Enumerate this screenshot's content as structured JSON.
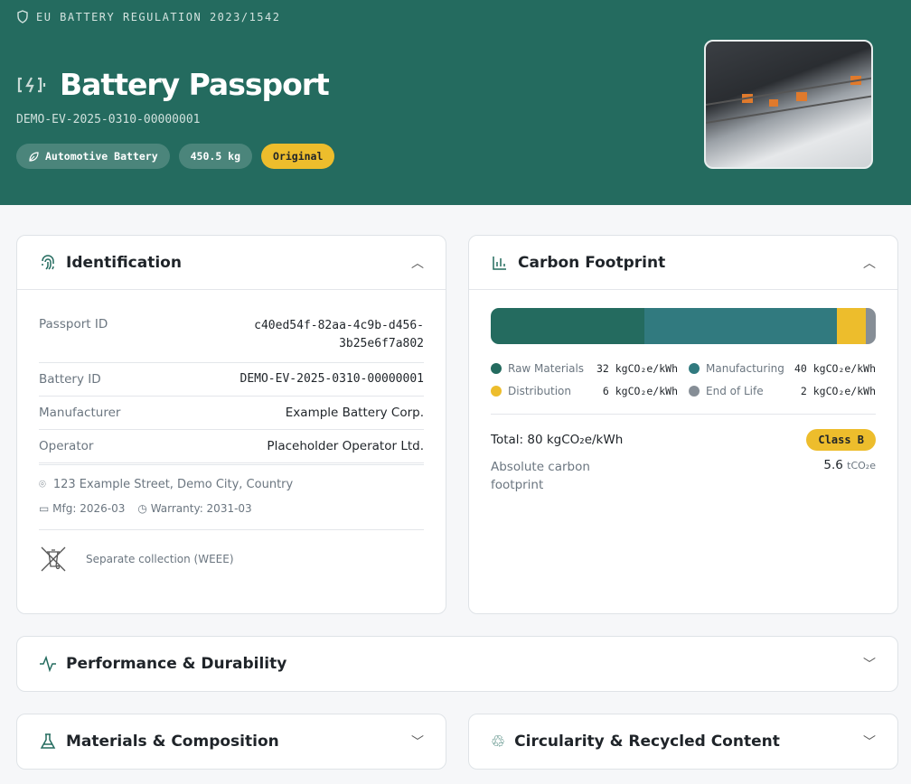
{
  "hero": {
    "regulation": "EU BATTERY REGULATION 2023/1542",
    "title": "Battery Passport",
    "battery_id": "DEMO-EV-2025-0310-00000001",
    "chips": [
      {
        "label": "Automotive Battery",
        "icon": "leaf-icon"
      },
      {
        "label": "450.5 kg"
      },
      {
        "label": "Original"
      }
    ]
  },
  "identification": {
    "title": "Identification",
    "rows": [
      {
        "label": "Passport ID",
        "value": "c40ed54f-82aa-4c9b-d456-3b25e6f7a802"
      },
      {
        "label": "Battery ID",
        "value": "DEMO-EV-2025-0310-00000001"
      },
      {
        "label": "Manufacturer",
        "value": "Example Battery Corp."
      },
      {
        "label": "Operator",
        "value": "Placeholder Operator Ltd."
      }
    ],
    "address": "123 Example Street, Demo City, Country",
    "mfg": "Mfg: 2026-03",
    "warranty": "Warranty: 2031-03",
    "collection": "Separate collection (WEEE)"
  },
  "carbon": {
    "title": "Carbon Footprint",
    "unit": "kgCO₂e/kWh",
    "segments": [
      {
        "name": "Raw Materials",
        "value": 32,
        "label": "32 kgCO₂e/kWh",
        "color": "#246b5f"
      },
      {
        "name": "Manufacturing",
        "value": 40,
        "label": "40 kgCO₂e/kWh",
        "color": "#317a7f"
      },
      {
        "name": "Distribution",
        "value": 6,
        "label": "6 kgCO₂e/kWh",
        "color": "#edbd2c"
      },
      {
        "name": "End of Life",
        "value": 2,
        "label": "2 kgCO₂e/kWh",
        "color": "#868e96"
      }
    ],
    "total": "Total: 80 kgCO₂e/kWh",
    "class": "Class B",
    "absolute_label": "Absolute carbon footprint",
    "absolute_value": "5.6",
    "absolute_unit": "tCO₂e"
  },
  "sections": {
    "performance": "Performance & Durability",
    "materials": "Materials & Composition",
    "circularity": "Circularity & Recycled Content"
  }
}
